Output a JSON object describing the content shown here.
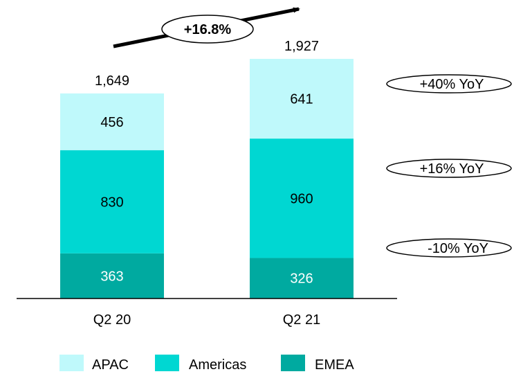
{
  "chart_data": {
    "type": "bar",
    "stacked": true,
    "categories": [
      "Q2 20",
      "Q2 21"
    ],
    "series": [
      {
        "name": "EMEA",
        "values": [
          363,
          326
        ],
        "color": "#00aaa0",
        "label_color": "#ffffff"
      },
      {
        "name": "Americas",
        "values": [
          830,
          960
        ],
        "color": "#00d7d2",
        "label_color": "#000000"
      },
      {
        "name": "APAC",
        "values": [
          456,
          641
        ],
        "color": "#bff9fb",
        "label_color": "#000000"
      }
    ],
    "totals": [
      "1,649",
      "1,927"
    ],
    "growth_label": "+16.8%",
    "yoy": [
      {
        "series": "APAC",
        "text": "+40% YoY"
      },
      {
        "series": "Americas",
        "text": "+16% YoY"
      },
      {
        "series": "EMEA",
        "text": "-10% YoY"
      }
    ],
    "legend": [
      "APAC",
      "Americas",
      "EMEA"
    ],
    "legend_position": "bottom",
    "title": "",
    "xlabel": "",
    "ylabel": "",
    "ylim": [
      0,
      1927
    ],
    "grid": false
  }
}
